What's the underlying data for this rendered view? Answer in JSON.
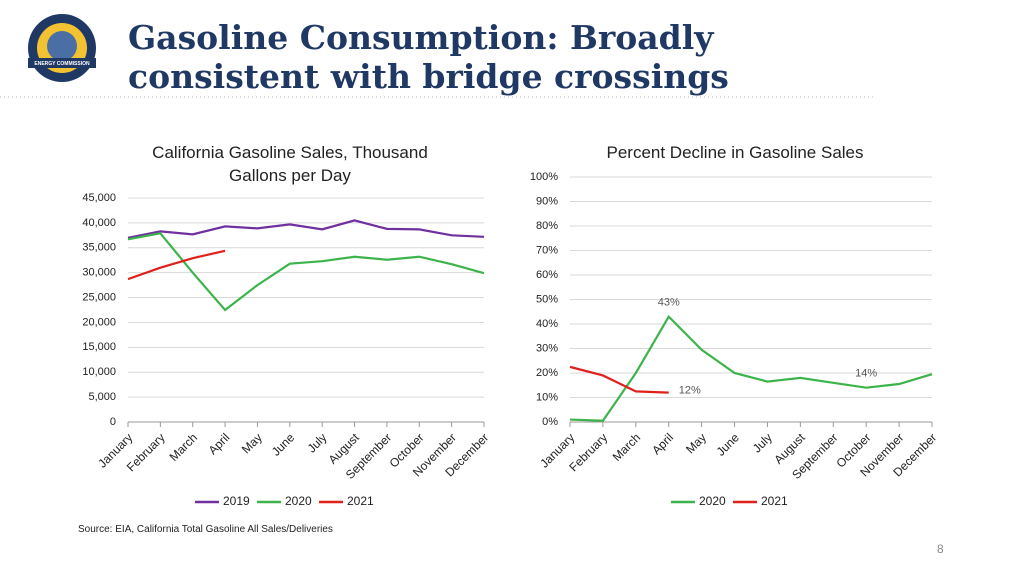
{
  "title": "Gasoline Consumption: Broadly consistent with bridge crossings",
  "logo": {
    "banner": "ENERGY COMMISSION"
  },
  "source": "Source: EIA, California Total Gasoline All Sales/Deliveries",
  "page_number": "8",
  "chart_data": [
    {
      "type": "line",
      "title": "California Gasoline Sales, Thousand Gallons per Day",
      "categories": [
        "January",
        "February",
        "March",
        "April",
        "May",
        "June",
        "July",
        "August",
        "September",
        "October",
        "November",
        "December"
      ],
      "series": [
        {
          "name": "2019",
          "color": "#7030a0",
          "values": [
            37000,
            38300,
            37700,
            39300,
            38900,
            39700,
            38700,
            40500,
            38800,
            38700,
            37500,
            37200
          ]
        },
        {
          "name": "2020",
          "color": "#3cb44b",
          "values": [
            36700,
            37900,
            30000,
            22500,
            27500,
            31800,
            32300,
            33200,
            32600,
            33200,
            31700,
            29900
          ]
        },
        {
          "name": "2021",
          "color": "#e0201b",
          "values": [
            28700,
            31000,
            32900,
            34400,
            null,
            null,
            null,
            null,
            null,
            null,
            null,
            null
          ]
        }
      ],
      "ylim": [
        0,
        45000
      ],
      "yticks": [
        0,
        {
          "value": 5000,
          "label": "5,000"
        },
        {
          "value": 10000,
          "label": "10,000"
        },
        {
          "value": 15000,
          "label": "15,000"
        },
        {
          "value": 20000,
          "label": "20,000"
        },
        {
          "value": 25000,
          "label": "25,000"
        },
        {
          "value": 30000,
          "label": "30,000"
        },
        {
          "value": 35000,
          "label": "35,000"
        },
        {
          "value": 40000,
          "label": "40,000"
        },
        {
          "value": 45000,
          "label": "45,000"
        }
      ],
      "grid": true,
      "legend": "bottom"
    },
    {
      "type": "line",
      "title": "Percent Decline in Gasoline Sales",
      "categories": [
        "January",
        "February",
        "March",
        "April",
        "May",
        "June",
        "July",
        "August",
        "September",
        "October",
        "November",
        "December"
      ],
      "series": [
        {
          "name": "2020",
          "color": "#3cb44b",
          "values": [
            1,
            0.5,
            20,
            43,
            29.5,
            20,
            16.5,
            18,
            16,
            14,
            15.5,
            19.5
          ],
          "value_labels": [
            null,
            null,
            null,
            "43%",
            null,
            null,
            null,
            null,
            null,
            "14%",
            null,
            null
          ]
        },
        {
          "name": "2021",
          "color": "#e0201b",
          "values": [
            22.5,
            19,
            12.5,
            12,
            null,
            null,
            null,
            null,
            null,
            null,
            null,
            null
          ],
          "value_labels": [
            null,
            null,
            null,
            "12%",
            null,
            null,
            null,
            null,
            null,
            null,
            null,
            null
          ]
        }
      ],
      "ylim": [
        0,
        100
      ],
      "yticks": [
        {
          "value": 0,
          "label": "0%"
        },
        {
          "value": 10,
          "label": "10%"
        },
        {
          "value": 20,
          "label": "20%"
        },
        {
          "value": 30,
          "label": "30%"
        },
        {
          "value": 40,
          "label": "40%"
        },
        {
          "value": 50,
          "label": "50%"
        },
        {
          "value": 60,
          "label": "60%"
        },
        {
          "value": 70,
          "label": "70%"
        },
        {
          "value": 80,
          "label": "80%"
        },
        {
          "value": 90,
          "label": "90%"
        },
        {
          "value": 100,
          "label": "100%"
        }
      ],
      "grid": true,
      "legend": "bottom"
    }
  ]
}
